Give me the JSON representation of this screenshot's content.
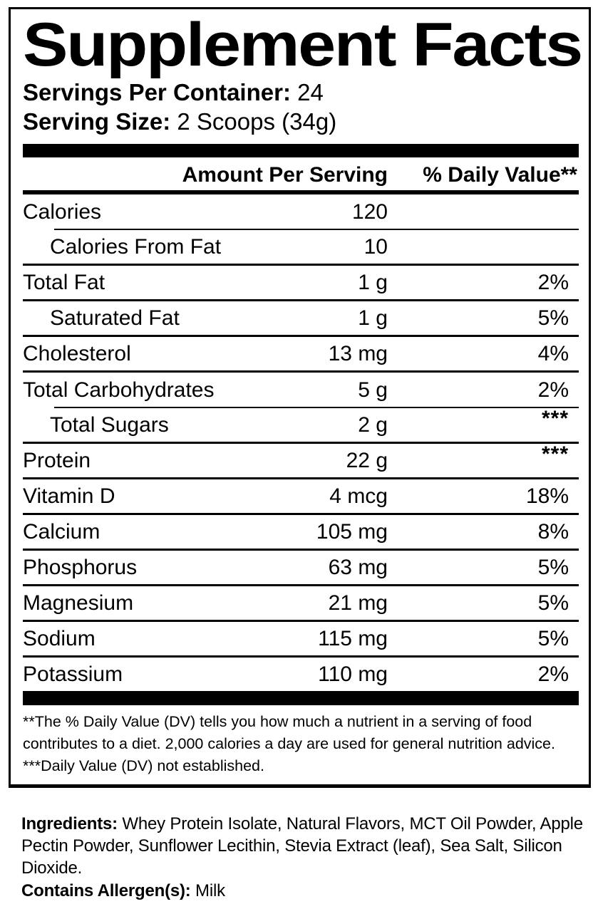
{
  "label": {
    "title": "Supplement Facts",
    "servings_per_container_label": "Servings Per Container:",
    "servings_per_container_value": " 24",
    "serving_size_label": "Serving Size:",
    "serving_size_value": " 2 Scoops (34g)",
    "columns": {
      "amount": "Amount Per Serving",
      "daily_value": "% Daily Value**"
    },
    "rows": [
      {
        "name": "Calories",
        "amount": "120",
        "dv": ""
      },
      {
        "name": "Calories From Fat",
        "amount": "10",
        "dv": ""
      },
      {
        "name": "Total Fat",
        "amount": "1 g",
        "dv": "2%"
      },
      {
        "name": "Saturated Fat",
        "amount": "1 g",
        "dv": "5%"
      },
      {
        "name": "Cholesterol",
        "amount": "13 mg",
        "dv": "4%"
      },
      {
        "name": "Total Carbohydrates",
        "amount": "5 g",
        "dv": "2%"
      },
      {
        "name": "Total Sugars",
        "amount": "2 g",
        "dv": "***"
      },
      {
        "name": "Protein",
        "amount": "22 g",
        "dv": "***"
      },
      {
        "name": "Vitamin D",
        "amount": "4 mcg",
        "dv": "18%"
      },
      {
        "name": "Calcium",
        "amount": "105 mg",
        "dv": "8%"
      },
      {
        "name": "Phosphorus",
        "amount": "63 mg",
        "dv": "5%"
      },
      {
        "name": "Magnesium",
        "amount": "21 mg",
        "dv": "5%"
      },
      {
        "name": "Sodium",
        "amount": "115 mg",
        "dv": "5%"
      },
      {
        "name": "Potassium",
        "amount": "110 mg",
        "dv": "2%"
      }
    ],
    "footnotes": {
      "daily_value_note": "**The % Daily Value (DV) tells you how much a nutrient in a serving of food contributes to a diet. 2,000 calories a day are used for general nutrition advice.",
      "not_established_note": "***Daily Value (DV) not established."
    }
  },
  "ingredients": {
    "label": "Ingredients:",
    "text": " Whey Protein Isolate, Natural Flavors, MCT Oil Powder, Apple Pectin Powder, Sunflower Lecithin, Stevia Extract (leaf), Sea Salt, Silicon Dioxide.",
    "allergen_label": "Contains Allergen(s):",
    "allergen_value": " Milk"
  },
  "colors": {
    "text": "#000000",
    "background": "#ffffff"
  }
}
